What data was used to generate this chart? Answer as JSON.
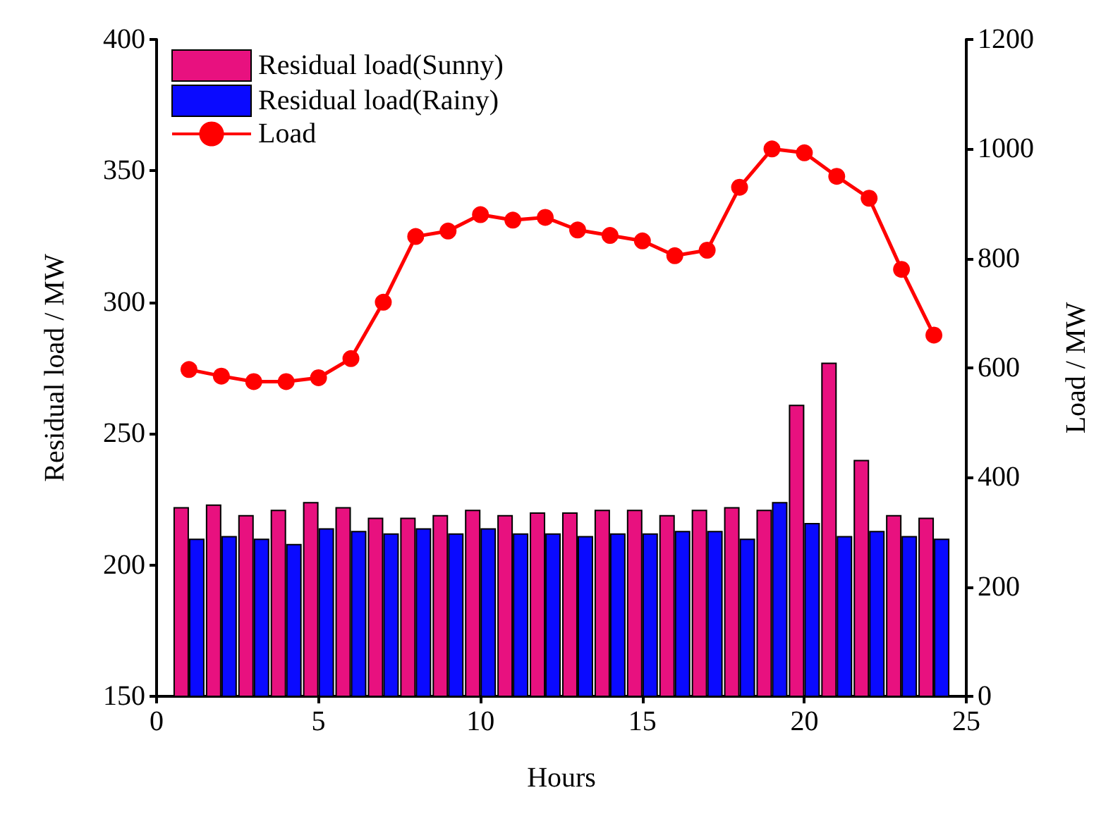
{
  "chart_data": {
    "type": "bar",
    "xlabel": "Hours",
    "ylabel": "Residual load / MW",
    "y2label": "Load / MW",
    "x": [
      1,
      2,
      3,
      4,
      5,
      6,
      7,
      8,
      9,
      10,
      11,
      12,
      13,
      14,
      15,
      16,
      17,
      18,
      19,
      20,
      21,
      22,
      23,
      24
    ],
    "series": [
      {
        "name": "Residual load(Sunny)",
        "color": "#e8117f",
        "values": [
          222,
          223,
          219,
          221,
          224,
          222,
          218,
          218,
          219,
          221,
          219,
          220,
          220,
          221,
          221,
          219,
          221,
          222,
          221,
          261,
          277,
          240,
          219,
          218
        ]
      },
      {
        "name": "Residual load(Rainy)",
        "color": "#0a0aff",
        "values": [
          210,
          211,
          210,
          208,
          214,
          213,
          212,
          214,
          212,
          214,
          212,
          212,
          211,
          212,
          212,
          213,
          213,
          210,
          224,
          216,
          211,
          213,
          211,
          210
        ]
      },
      {
        "name": "Load",
        "type": "line",
        "axis": "y2",
        "color": "#ff0000",
        "values": [
          597,
          585,
          575,
          575,
          582,
          617,
          720,
          840,
          850,
          880,
          870,
          875,
          852,
          842,
          832,
          805,
          815,
          930,
          1000,
          993,
          950,
          910,
          780,
          660
        ]
      }
    ],
    "xlim": [
      0,
      25
    ],
    "xticks": [
      0,
      5,
      10,
      15,
      20,
      25
    ],
    "ylim": [
      150,
      400
    ],
    "yticks": [
      150,
      200,
      250,
      300,
      350,
      400
    ],
    "y2lim": [
      0,
      1200
    ],
    "y2ticks": [
      0,
      200,
      400,
      600,
      800,
      1000,
      1200
    ],
    "grid": false,
    "legend": "top left",
    "marker": "circle",
    "line_style": "solid"
  }
}
